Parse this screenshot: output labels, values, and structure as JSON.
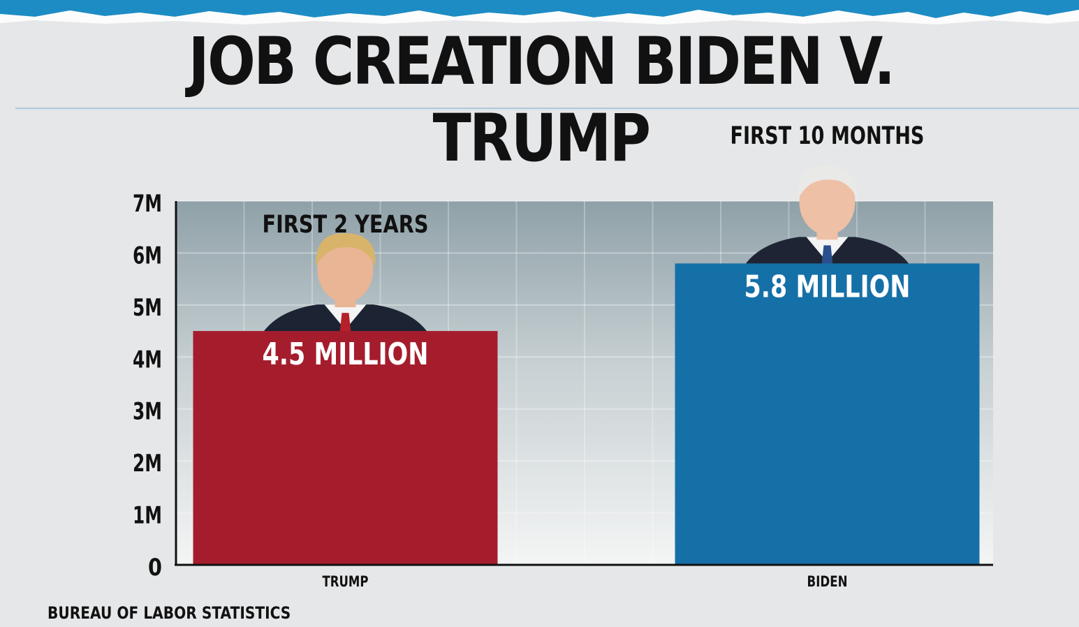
{
  "title": "JOB CREATION BIDEN V. TRUMP",
  "source": "BUREAU OF LABOR STATISTICS",
  "colors": {
    "trump_bar": "#a51d2d",
    "biden_bar": "#1670a8",
    "plot_top": "#8fa1a8",
    "plot_bottom": "#f4f5f5",
    "top_band": "#1d8cc4"
  },
  "chart_data": {
    "type": "bar",
    "title": "JOB CREATION BIDEN V. TRUMP",
    "categories": [
      "TRUMP",
      "BIDEN"
    ],
    "values": [
      4.5,
      5.8
    ],
    "value_labels": [
      "4.5 MILLION",
      "5.8 MILLION"
    ],
    "period_labels": [
      "FIRST 2 YEARS",
      "FIRST 10 MONTHS"
    ],
    "bar_colors": [
      "#a51d2d",
      "#1670a8"
    ],
    "ylim": [
      0,
      7
    ],
    "yticks": [
      0,
      1,
      2,
      3,
      4,
      5,
      6,
      7
    ],
    "ytick_labels": [
      "0",
      "1M",
      "2M",
      "3M",
      "4M",
      "5M",
      "6M",
      "7M"
    ],
    "xlabel": "",
    "ylabel": "",
    "grid": true,
    "portraits": [
      "trump-portrait",
      "biden-portrait"
    ]
  }
}
